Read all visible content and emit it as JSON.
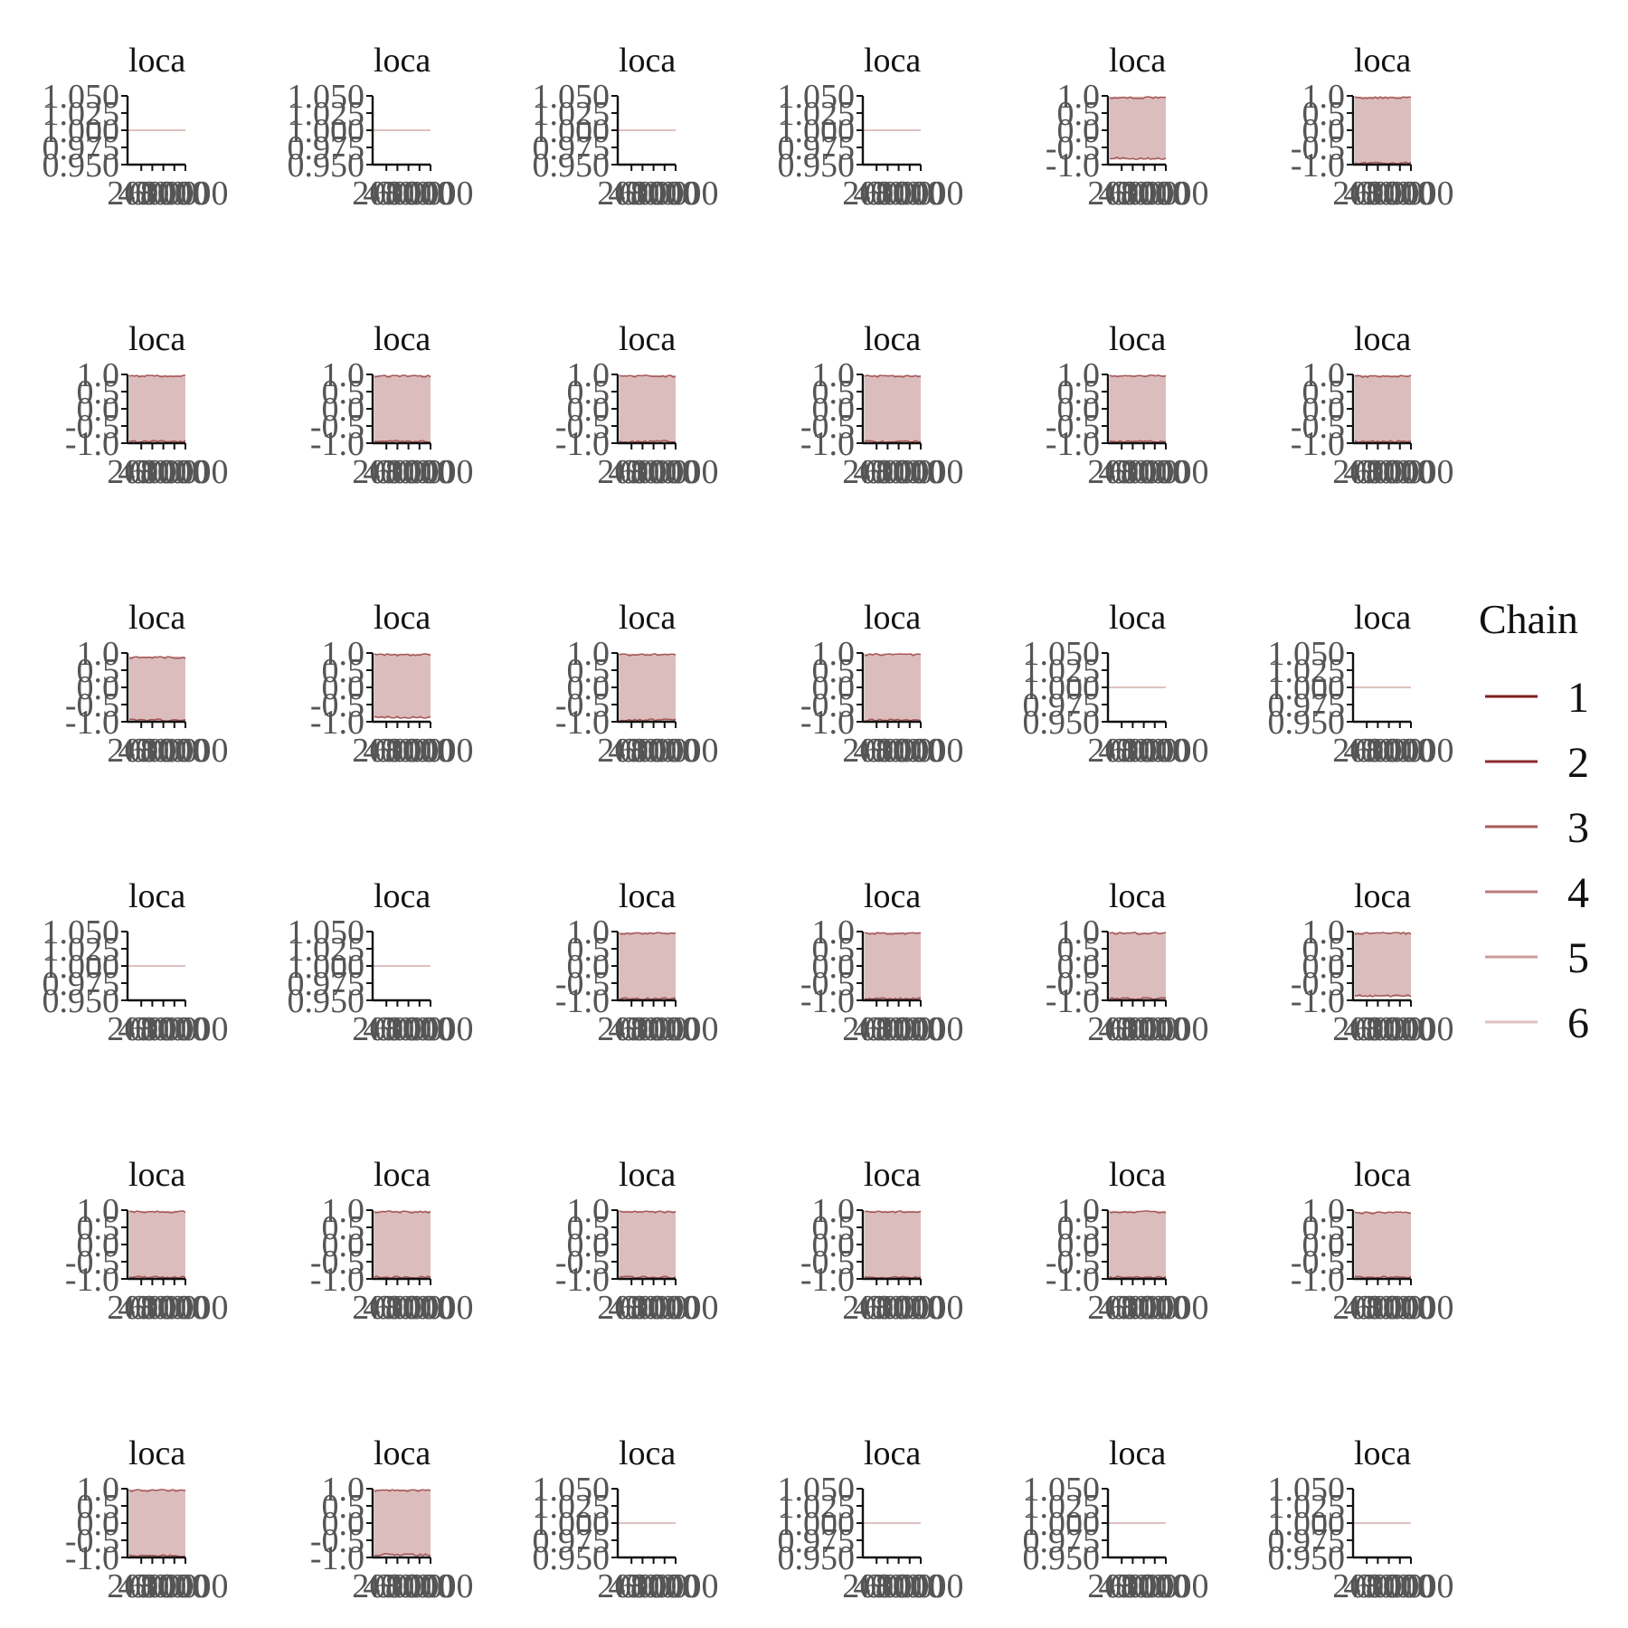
{
  "figure": {
    "legend": {
      "title": "Chain",
      "labels": [
        "1",
        "2",
        "3",
        "4",
        "5",
        "6"
      ],
      "colors": [
        "#7f1d1d",
        "#8e2b2b",
        "#a95858",
        "#bd7a7a",
        "#cc9c9c",
        "#dfc1c1"
      ],
      "placement": "right"
    },
    "text_color": "#555555",
    "band_color": "#dcbdbd"
  },
  "chart_data": [
    {
      "type": "line",
      "title": "loca",
      "kind": "constant",
      "yticks": [
        "1.050",
        "1.025",
        "1.000",
        "0.975",
        "0.950"
      ],
      "xticks": [
        "2000",
        "4000",
        "6000",
        "8000",
        "10000"
      ],
      "value": 1.0
    },
    {
      "type": "line",
      "title": "loca",
      "kind": "constant",
      "yticks": [
        "1.050",
        "1.025",
        "1.000",
        "0.975",
        "0.950"
      ],
      "xticks": [
        "2000",
        "4000",
        "6000",
        "8000",
        "10000"
      ],
      "value": 1.0
    },
    {
      "type": "line",
      "title": "loca",
      "kind": "constant",
      "yticks": [
        "1.050",
        "1.025",
        "1.000",
        "0.975",
        "0.950"
      ],
      "xticks": [
        "2000",
        "4000",
        "6000",
        "8000",
        "10000"
      ],
      "value": 1.0
    },
    {
      "type": "line",
      "title": "loca",
      "kind": "constant",
      "yticks": [
        "1.050",
        "1.025",
        "1.000",
        "0.975",
        "0.950"
      ],
      "xticks": [
        "2000",
        "4000",
        "6000",
        "8000",
        "10000"
      ],
      "value": 1.0
    },
    {
      "type": "line",
      "title": "loca",
      "kind": "band",
      "yticks": [
        "1.0",
        "0.5",
        "0.0",
        "-0.5",
        "-1.0"
      ],
      "xticks": [
        "2000",
        "4000",
        "6000",
        "8000",
        "10000"
      ],
      "range": [
        -0.85,
        0.98
      ]
    },
    {
      "type": "line",
      "title": "loca",
      "kind": "band",
      "yticks": [
        "1.0",
        "0.5",
        "0.0",
        "-0.5",
        "-1.0"
      ],
      "xticks": [
        "2000",
        "4000",
        "6000",
        "8000",
        "10000"
      ],
      "range": [
        -0.98,
        0.98
      ]
    },
    {
      "type": "line",
      "title": "loca",
      "kind": "band",
      "yticks": [
        "1.0",
        "0.5",
        "0.0",
        "-0.5",
        "-1.0"
      ],
      "xticks": [
        "2000",
        "4000",
        "6000",
        "8000",
        "10000"
      ],
      "range": [
        -0.98,
        0.98
      ]
    },
    {
      "type": "line",
      "title": "loca",
      "kind": "band",
      "yticks": [
        "1.0",
        "0.5",
        "0.0",
        "-0.5",
        "-1.0"
      ],
      "xticks": [
        "2000",
        "4000",
        "6000",
        "8000",
        "10000"
      ],
      "range": [
        -0.98,
        0.98
      ]
    },
    {
      "type": "line",
      "title": "loca",
      "kind": "band",
      "yticks": [
        "1.0",
        "0.5",
        "0.0",
        "-0.5",
        "-1.0"
      ],
      "xticks": [
        "2000",
        "4000",
        "6000",
        "8000",
        "10000"
      ],
      "range": [
        -0.98,
        0.98
      ]
    },
    {
      "type": "line",
      "title": "loca",
      "kind": "band",
      "yticks": [
        "1.0",
        "0.5",
        "0.0",
        "-0.5",
        "-1.0"
      ],
      "xticks": [
        "2000",
        "4000",
        "6000",
        "8000",
        "10000"
      ],
      "range": [
        -0.98,
        0.98
      ]
    },
    {
      "type": "line",
      "title": "loca",
      "kind": "band",
      "yticks": [
        "1.0",
        "0.5",
        "0.0",
        "-0.5",
        "-1.0"
      ],
      "xticks": [
        "2000",
        "4000",
        "6000",
        "8000",
        "10000"
      ],
      "range": [
        -0.98,
        0.98
      ]
    },
    {
      "type": "line",
      "title": "loca",
      "kind": "band",
      "yticks": [
        "1.0",
        "0.5",
        "0.0",
        "-0.5",
        "-1.0"
      ],
      "xticks": [
        "2000",
        "4000",
        "6000",
        "8000",
        "10000"
      ],
      "range": [
        -0.98,
        0.98
      ]
    },
    {
      "type": "line",
      "title": "loca",
      "kind": "band",
      "yticks": [
        "1.0",
        "0.5",
        "0.0",
        "-0.5",
        "-1.0"
      ],
      "xticks": [
        "2000",
        "4000",
        "6000",
        "8000",
        "10000"
      ],
      "range": [
        -0.98,
        0.9
      ]
    },
    {
      "type": "line",
      "title": "loca",
      "kind": "band",
      "yticks": [
        "1.0",
        "0.5",
        "0.0",
        "-0.5",
        "-1.0"
      ],
      "xticks": [
        "2000",
        "4000",
        "6000",
        "8000",
        "10000"
      ],
      "range": [
        -0.9,
        0.98
      ]
    },
    {
      "type": "line",
      "title": "loca",
      "kind": "band",
      "yticks": [
        "1.0",
        "0.5",
        "0.0",
        "-0.5",
        "-1.0"
      ],
      "xticks": [
        "2000",
        "4000",
        "6000",
        "8000",
        "10000"
      ],
      "range": [
        -0.98,
        0.98
      ]
    },
    {
      "type": "line",
      "title": "loca",
      "kind": "band",
      "yticks": [
        "1.0",
        "0.5",
        "0.0",
        "-0.5",
        "-1.0"
      ],
      "xticks": [
        "2000",
        "4000",
        "6000",
        "8000",
        "10000"
      ],
      "range": [
        -0.98,
        0.98
      ]
    },
    {
      "type": "line",
      "title": "loca",
      "kind": "constant",
      "yticks": [
        "1.050",
        "1.025",
        "1.000",
        "0.975",
        "0.950"
      ],
      "xticks": [
        "2000",
        "4000",
        "6000",
        "8000",
        "10000"
      ],
      "value": 1.0
    },
    {
      "type": "line",
      "title": "loca",
      "kind": "constant",
      "yticks": [
        "1.050",
        "1.025",
        "1.000",
        "0.975",
        "0.950"
      ],
      "xticks": [
        "2000",
        "4000",
        "6000",
        "8000",
        "10000"
      ],
      "value": 1.0
    },
    {
      "type": "line",
      "title": "loca",
      "kind": "constant",
      "yticks": [
        "1.050",
        "1.025",
        "1.000",
        "0.975",
        "0.950"
      ],
      "xticks": [
        "2000",
        "4000",
        "6000",
        "8000",
        "10000"
      ],
      "value": 1.0
    },
    {
      "type": "line",
      "title": "loca",
      "kind": "constant",
      "yticks": [
        "1.050",
        "1.025",
        "1.000",
        "0.975",
        "0.950"
      ],
      "xticks": [
        "2000",
        "4000",
        "6000",
        "8000",
        "10000"
      ],
      "value": 1.0
    },
    {
      "type": "line",
      "title": "loca",
      "kind": "band",
      "yticks": [
        "1.0",
        "0.5",
        "0.0",
        "-0.5",
        "-1.0"
      ],
      "xticks": [
        "2000",
        "4000",
        "6000",
        "8000",
        "10000"
      ],
      "range": [
        -0.98,
        0.98
      ]
    },
    {
      "type": "line",
      "title": "loca",
      "kind": "band",
      "yticks": [
        "1.0",
        "0.5",
        "0.0",
        "-0.5",
        "-1.0"
      ],
      "xticks": [
        "2000",
        "4000",
        "6000",
        "8000",
        "10000"
      ],
      "range": [
        -0.98,
        0.98
      ]
    },
    {
      "type": "line",
      "title": "loca",
      "kind": "band",
      "yticks": [
        "1.0",
        "0.5",
        "0.0",
        "-0.5",
        "-1.0"
      ],
      "xticks": [
        "2000",
        "4000",
        "6000",
        "8000",
        "10000"
      ],
      "range": [
        -0.98,
        0.98
      ]
    },
    {
      "type": "line",
      "title": "loca",
      "kind": "band",
      "yticks": [
        "1.0",
        "0.5",
        "0.0",
        "-0.5",
        "-1.0"
      ],
      "xticks": [
        "2000",
        "4000",
        "6000",
        "8000",
        "10000"
      ],
      "range": [
        -0.9,
        0.98
      ]
    },
    {
      "type": "line",
      "title": "loca",
      "kind": "band",
      "yticks": [
        "1.0",
        "0.5",
        "0.0",
        "-0.5",
        "-1.0"
      ],
      "xticks": [
        "2000",
        "4000",
        "6000",
        "8000",
        "10000"
      ],
      "range": [
        -0.98,
        0.98
      ]
    },
    {
      "type": "line",
      "title": "loca",
      "kind": "band",
      "yticks": [
        "1.0",
        "0.5",
        "0.0",
        "-0.5",
        "-1.0"
      ],
      "xticks": [
        "2000",
        "4000",
        "6000",
        "8000",
        "10000"
      ],
      "range": [
        -0.98,
        0.98
      ]
    },
    {
      "type": "line",
      "title": "loca",
      "kind": "band",
      "yticks": [
        "1.0",
        "0.5",
        "0.0",
        "-0.5",
        "-1.0"
      ],
      "xticks": [
        "2000",
        "4000",
        "6000",
        "8000",
        "10000"
      ],
      "range": [
        -0.98,
        0.98
      ]
    },
    {
      "type": "line",
      "title": "loca",
      "kind": "band",
      "yticks": [
        "1.0",
        "0.5",
        "0.0",
        "-0.5",
        "-1.0"
      ],
      "xticks": [
        "2000",
        "4000",
        "6000",
        "8000",
        "10000"
      ],
      "range": [
        -0.98,
        0.98
      ]
    },
    {
      "type": "line",
      "title": "loca",
      "kind": "band",
      "yticks": [
        "1.0",
        "0.5",
        "0.0",
        "-0.5",
        "-1.0"
      ],
      "xticks": [
        "2000",
        "4000",
        "6000",
        "8000",
        "10000"
      ],
      "range": [
        -0.98,
        0.98
      ]
    },
    {
      "type": "line",
      "title": "loca",
      "kind": "band",
      "yticks": [
        "1.0",
        "0.5",
        "0.0",
        "-0.5",
        "-1.0"
      ],
      "xticks": [
        "2000",
        "4000",
        "6000",
        "8000",
        "10000"
      ],
      "range": [
        -0.98,
        0.95
      ]
    },
    {
      "type": "line",
      "title": "loca",
      "kind": "band",
      "yticks": [
        "1.0",
        "0.5",
        "0.0",
        "-0.5",
        "-1.0"
      ],
      "xticks": [
        "2000",
        "4000",
        "6000",
        "8000",
        "10000"
      ],
      "range": [
        -0.98,
        0.98
      ]
    },
    {
      "type": "line",
      "title": "loca",
      "kind": "band",
      "yticks": [
        "1.0",
        "0.5",
        "0.0",
        "-0.5",
        "-1.0"
      ],
      "xticks": [
        "2000",
        "4000",
        "6000",
        "8000",
        "10000"
      ],
      "range": [
        -0.95,
        0.98
      ]
    },
    {
      "type": "line",
      "title": "loca",
      "kind": "constant",
      "yticks": [
        "1.050",
        "1.025",
        "1.000",
        "0.975",
        "0.950"
      ],
      "xticks": [
        "2000",
        "4000",
        "6000",
        "8000",
        "10000"
      ],
      "value": 1.0
    },
    {
      "type": "line",
      "title": "loca",
      "kind": "constant",
      "yticks": [
        "1.050",
        "1.025",
        "1.000",
        "0.975",
        "0.950"
      ],
      "xticks": [
        "2000",
        "4000",
        "6000",
        "8000",
        "10000"
      ],
      "value": 1.0
    },
    {
      "type": "line",
      "title": "loca",
      "kind": "constant",
      "yticks": [
        "1.050",
        "1.025",
        "1.000",
        "0.975",
        "0.950"
      ],
      "xticks": [
        "2000",
        "4000",
        "6000",
        "8000",
        "10000"
      ],
      "value": 1.0
    },
    {
      "type": "line",
      "title": "loca",
      "kind": "constant",
      "yticks": [
        "1.050",
        "1.025",
        "1.000",
        "0.975",
        "0.950"
      ],
      "xticks": [
        "2000",
        "4000",
        "6000",
        "8000",
        "10000"
      ],
      "value": 1.0
    }
  ]
}
